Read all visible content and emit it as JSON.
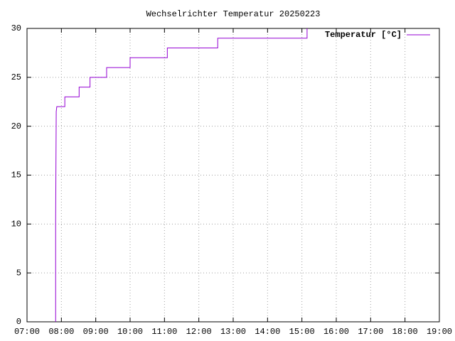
{
  "chart_data": {
    "type": "line",
    "title": "Wechselrichter Temperatur 20250223",
    "x": [
      "07:50",
      "07:50",
      "07:51",
      "07:52",
      "08:06",
      "08:06",
      "08:31",
      "08:31",
      "08:50",
      "08:50",
      "09:19",
      "09:19",
      "10:00",
      "10:00",
      "11:05",
      "11:05",
      "12:33",
      "12:33",
      "15:09",
      "15:09"
    ],
    "series": [
      {
        "name": "Temperatur [°C]",
        "color": "#9400d3",
        "values": [
          0,
          10.5,
          21.5,
          22,
          22,
          23,
          23,
          24,
          24,
          25,
          25,
          26,
          26,
          27,
          27,
          28,
          28,
          29,
          29,
          30
        ]
      }
    ],
    "xlim": [
      {
        "value": 7,
        "label": "07:00"
      },
      {
        "value": 19,
        "label": "19:00"
      }
    ],
    "xticks": [
      {
        "value": 7,
        "label": "07:00"
      },
      {
        "value": 8,
        "label": "08:00"
      },
      {
        "value": 9,
        "label": "09:00"
      },
      {
        "value": 10,
        "label": "10:00"
      },
      {
        "value": 11,
        "label": "11:00"
      },
      {
        "value": 12,
        "label": "12:00"
      },
      {
        "value": 13,
        "label": "13:00"
      },
      {
        "value": 14,
        "label": "14:00"
      },
      {
        "value": 15,
        "label": "15:00"
      },
      {
        "value": 16,
        "label": "16:00"
      },
      {
        "value": 17,
        "label": "17:00"
      },
      {
        "value": 18,
        "label": "18:00"
      },
      {
        "value": 19,
        "label": "19:00"
      }
    ],
    "ylim": [
      0,
      30
    ],
    "yticks": [
      0,
      5,
      10,
      15,
      20,
      25,
      30
    ],
    "grid": true,
    "legend": "top-right"
  }
}
